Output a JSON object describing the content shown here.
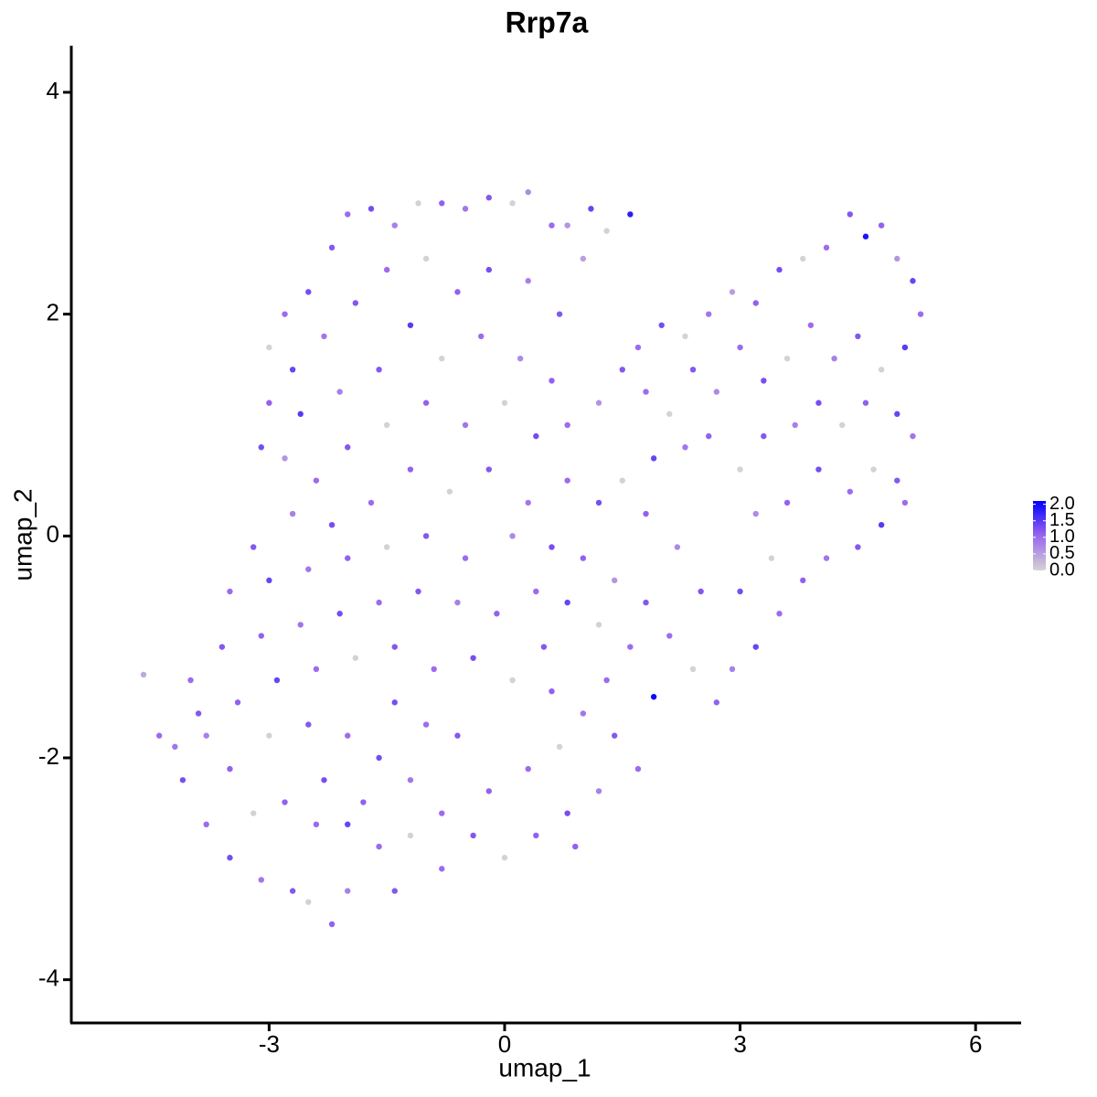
{
  "chart_data": {
    "type": "scatter",
    "title": "Rrp7a",
    "x_label": "umap_1",
    "y_label": "umap_2",
    "xlim": [
      -5.52,
      6.58
    ],
    "ylim": [
      -4.39,
      4.42
    ],
    "xticks": [
      -3,
      0,
      3,
      6
    ],
    "yticks": [
      -4,
      -2,
      0,
      2,
      4
    ],
    "color_scale": {
      "colors": [
        "#d3d3d3",
        "#9a66ee",
        "#0000ff"
      ],
      "lim": [
        0,
        2.1
      ],
      "ticks": [
        {
          "value": 0,
          "label": "0.0"
        },
        {
          "value": 0.5,
          "label": "0.5"
        },
        {
          "value": 1,
          "label": "1.0"
        },
        {
          "value": 1.5,
          "label": "1.5"
        },
        {
          "value": 2,
          "label": "2.0"
        }
      ]
    },
    "x": [
      -2.2,
      -2.0,
      -1.7,
      -1.4,
      -1.1,
      -0.8,
      -0.5,
      -0.2,
      0.1,
      0.3,
      0.6,
      0.8,
      1.1,
      1.6,
      1.3,
      -2.5,
      -2.8,
      -3.0,
      -2.7,
      -2.3,
      -1.9,
      -1.5,
      -1.0,
      -0.6,
      -0.2,
      0.3,
      0.7,
      1.0,
      -1.2,
      -0.8,
      -0.3,
      0.2,
      0.6,
      -1.6,
      -2.1,
      -2.6,
      -3.0,
      -3.1,
      -2.8,
      -2.4,
      -2.0,
      -1.5,
      -1.0,
      -0.5,
      0.0,
      0.4,
      0.8,
      1.2,
      1.5,
      1.7,
      2.0,
      2.3,
      2.6,
      2.9,
      3.2,
      3.5,
      3.8,
      4.1,
      4.4,
      4.6,
      4.8,
      5.0,
      5.2,
      5.3,
      5.1,
      4.8,
      4.5,
      4.2,
      3.9,
      3.6,
      3.3,
      3.0,
      2.7,
      2.4,
      2.1,
      1.8,
      1.9,
      2.3,
      2.6,
      3.0,
      3.3,
      3.7,
      4.0,
      4.3,
      4.6,
      5.0,
      5.2,
      5.0,
      4.7,
      4.4,
      4.0,
      3.6,
      3.2,
      4.8,
      5.1,
      4.5,
      4.1,
      3.8,
      3.4,
      3.0,
      3.5,
      3.2,
      2.9,
      2.7,
      2.4,
      2.1,
      2.5,
      2.2,
      1.8,
      1.5,
      1.2,
      0.8,
      0.3,
      -0.2,
      -0.7,
      -1.2,
      -1.7,
      -2.2,
      -2.7,
      -3.2,
      -3.5,
      -3.0,
      -2.5,
      -2.0,
      -1.5,
      -1.0,
      -0.5,
      0.1,
      0.6,
      1.0,
      1.4,
      1.8,
      1.6,
      1.2,
      0.8,
      0.4,
      -0.1,
      -0.6,
      -1.1,
      -1.6,
      -2.1,
      -2.6,
      -3.1,
      -3.6,
      -4.0,
      -4.6,
      -4.4,
      -4.1,
      -3.8,
      -3.4,
      -2.9,
      -2.4,
      -1.9,
      -1.4,
      -0.9,
      -0.4,
      0.1,
      0.6,
      1.0,
      1.4,
      1.9,
      1.7,
      1.2,
      0.8,
      0.4,
      0.0,
      -0.4,
      -0.8,
      -1.2,
      -1.6,
      -2.0,
      -2.5,
      -3.0,
      -3.5,
      -3.8,
      -3.5,
      -3.1,
      -2.7,
      -2.5,
      -2.2,
      -2.0,
      -1.4,
      -1.6,
      -2.0,
      -2.4,
      -2.8,
      -3.2,
      -0.2,
      0.3,
      0.7,
      -0.6,
      -1.0,
      -1.4,
      0.5,
      1.3,
      0.9,
      -0.8,
      -1.2,
      -3.9,
      -4.2,
      -2.3,
      -1.8
    ],
    "values": [
      2.6,
      2.9,
      2.95,
      2.8,
      3.0,
      3.0,
      2.95,
      3.05,
      3.0,
      3.1,
      2.8,
      2.8,
      2.95,
      2.9,
      2.75,
      2.2,
      2.0,
      1.7,
      1.5,
      1.8,
      2.1,
      2.4,
      2.5,
      2.2,
      2.4,
      2.3,
      2.0,
      2.5,
      1.9,
      1.6,
      1.8,
      1.6,
      1.4,
      1.5,
      1.3,
      1.1,
      1.2,
      0.8,
      0.7,
      0.5,
      0.8,
      1.0,
      1.2,
      1.0,
      1.2,
      0.9,
      1.0,
      1.2,
      1.5,
      1.7,
      1.9,
      1.8,
      2.0,
      2.2,
      2.1,
      2.4,
      2.5,
      2.6,
      2.9,
      2.7,
      2.8,
      2.5,
      2.3,
      2.0,
      1.7,
      1.5,
      1.8,
      1.6,
      1.9,
      1.6,
      1.4,
      1.7,
      1.3,
      1.5,
      1.1,
      1.3,
      0.7,
      0.8,
      0.9,
      0.6,
      0.9,
      1.0,
      1.2,
      1.0,
      1.2,
      1.1,
      0.9,
      0.5,
      0.6,
      0.4,
      0.6,
      0.3,
      0.2,
      0.1,
      0.3,
      -0.1,
      -0.2,
      -0.4,
      -0.2,
      -0.5,
      -0.7,
      -1.0,
      -1.2,
      -1.5,
      -1.2,
      -0.9,
      -0.5,
      -0.1,
      0.2,
      0.5,
      0.3,
      0.5,
      0.3,
      0.6,
      0.4,
      0.6,
      0.3,
      0.1,
      0.2,
      -0.1,
      -0.5,
      -0.4,
      -0.3,
      -0.2,
      -0.1,
      0.0,
      -0.2,
      0.0,
      -0.1,
      -0.2,
      -0.4,
      -0.6,
      -1.0,
      -0.8,
      -0.6,
      -0.5,
      -0.7,
      -0.6,
      -0.5,
      -0.6,
      -0.7,
      -0.8,
      -0.9,
      -1.0,
      -1.3,
      -1.25,
      -1.8,
      -2.2,
      -1.8,
      -1.5,
      -1.3,
      -1.2,
      -1.1,
      -1.0,
      -1.2,
      -1.1,
      -1.3,
      -1.4,
      -1.6,
      -1.8,
      -1.45,
      -2.1,
      -2.3,
      -2.5,
      -2.7,
      -2.9,
      -2.7,
      -2.5,
      -2.2,
      -2.0,
      -1.8,
      -1.7,
      -1.8,
      -2.1,
      -2.6,
      -2.9,
      -3.1,
      -3.2,
      -3.3,
      -3.5,
      -3.2,
      -3.2,
      -2.8,
      -2.6,
      -2.6,
      -2.4,
      -2.5,
      -2.3,
      -2.1,
      -1.9,
      -1.8,
      -1.7,
      -1.5,
      -1.0,
      -1.3,
      -2.8,
      -3.0,
      -2.7,
      -1.6,
      -1.9,
      -2.2,
      -2.4
    ],
    "color_values": [
      1.2,
      1.0,
      1.3,
      0.8,
      0,
      1.1,
      0.9,
      1.2,
      0,
      0.7,
      1.0,
      0.6,
      1.4,
      1.8,
      0,
      1.3,
      1.0,
      0,
      1.4,
      0.9,
      1.2,
      1.0,
      0,
      1.1,
      1.3,
      0.8,
      1.2,
      0.5,
      1.5,
      0,
      1.0,
      0.7,
      1.1,
      1.2,
      0.8,
      1.5,
      1.1,
      1.3,
      0.6,
      1.0,
      1.2,
      0,
      1.1,
      0.9,
      0,
      1.3,
      1.0,
      0.6,
      1.2,
      1.0,
      1.3,
      0,
      0.9,
      0.5,
      1.1,
      1.3,
      0,
      1.0,
      1.2,
      1.9,
      1.1,
      0.6,
      1.4,
      1.0,
      1.5,
      0,
      1.2,
      0.8,
      1.0,
      0,
      1.3,
      1.0,
      0.7,
      1.2,
      0,
      1.0,
      1.4,
      0.9,
      1.1,
      0,
      1.2,
      0.8,
      1.3,
      0,
      1.1,
      1.4,
      0.9,
      1.2,
      0,
      1.0,
      1.3,
      1.1,
      0.7,
      1.5,
      1.0,
      1.2,
      0.9,
      1.1,
      0,
      1.3,
      1.0,
      1.4,
      0.8,
      1.1,
      0,
      1.0,
      1.2,
      0.7,
      1.1,
      0,
      1.3,
      1.0,
      0.9,
      1.2,
      0,
      1.1,
      1.0,
      1.3,
      0.8,
      1.2,
      1.0,
      1.4,
      0.9,
      1.1,
      0,
      1.2,
      1.0,
      0.7,
      1.3,
      1.1,
      0.6,
      1.2,
      1.0,
      0,
      1.4,
      1.0,
      1.1,
      0.8,
      1.2,
      1.0,
      1.3,
      0.9,
      1.1,
      1.2,
      1.0,
      0.4,
      1.0,
      1.3,
      0.8,
      1.1,
      1.4,
      1.0,
      0,
      1.2,
      1.0,
      1.3,
      0,
      1.1,
      0.9,
      1.2,
      2.0,
      1.0,
      0.8,
      1.3,
      1.1,
      0,
      1.2,
      1.0,
      0.9,
      1.3,
      1.0,
      1.2,
      0,
      1.1,
      1.0,
      1.3,
      0.9,
      1.2,
      0,
      1.1,
      0.8,
      1.2,
      1.0,
      1.4,
      1.0,
      1.1,
      0,
      1.1,
      1.0,
      0,
      1.2,
      1.0,
      1.3,
      1.2,
      1.0,
      1.1,
      1.0,
      0,
      1.2,
      0.9,
      1.3,
      1.1
    ]
  }
}
